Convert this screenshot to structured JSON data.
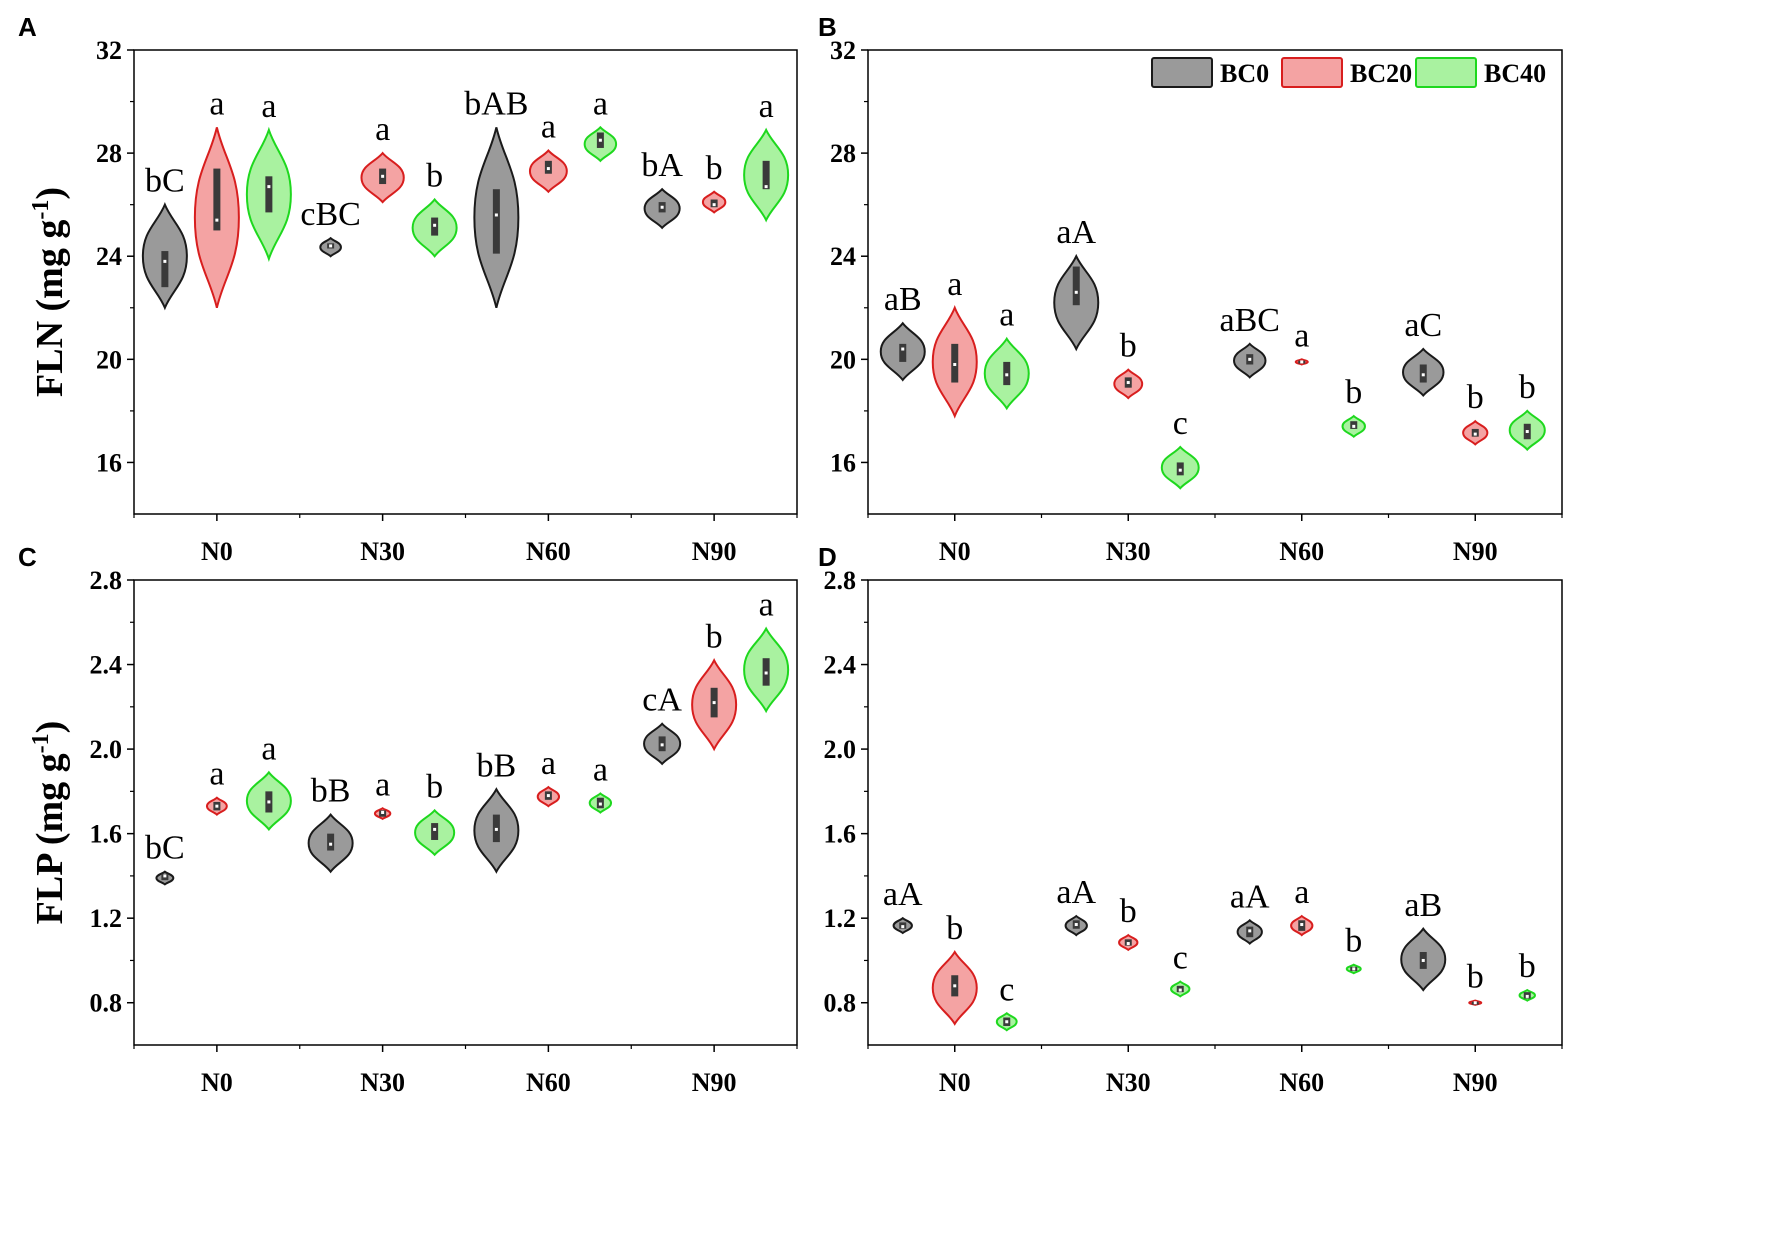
{
  "colors": {
    "BC0": {
      "fill": "#9a9a9a",
      "stroke": "#1a1a1a"
    },
    "BC20": {
      "fill": "#f4a3a3",
      "stroke": "#d81e1e"
    },
    "BC40": {
      "fill": "#a9f2a0",
      "stroke": "#1ed81e"
    },
    "box": "#3a3a3a",
    "median": "#ffffff"
  },
  "legend": [
    "BC0",
    "BC20",
    "BC40"
  ],
  "chart_data": [
    {
      "panel": "A",
      "type": "violin",
      "ylabel": "FLN (mg g",
      "ylabel_sup": "-1",
      "ylabel_close": ")",
      "ylim": [
        14,
        32
      ],
      "yticks": [
        16,
        20,
        24,
        28,
        32
      ],
      "categories": [
        "N0",
        "N30",
        "N60",
        "N90"
      ],
      "series": [
        {
          "name": "BC0",
          "groups": [
            {
              "min": 22.0,
              "max": 26.0,
              "q1": 22.8,
              "q3": 24.2,
              "median": 23.8,
              "label": "bC"
            },
            {
              "min": 24.0,
              "max": 24.7,
              "q1": 24.3,
              "q3": 24.5,
              "median": 24.4,
              "label": "cBC"
            },
            {
              "min": 22.0,
              "max": 29.0,
              "q1": 24.1,
              "q3": 26.6,
              "median": 25.6,
              "label": "bAB"
            },
            {
              "min": 25.1,
              "max": 26.6,
              "q1": 25.7,
              "q3": 26.1,
              "median": 25.9,
              "label": "bA"
            }
          ]
        },
        {
          "name": "BC20",
          "groups": [
            {
              "min": 22.0,
              "max": 29.0,
              "q1": 25.0,
              "q3": 27.4,
              "median": 25.4,
              "label": "a"
            },
            {
              "min": 26.1,
              "max": 28.0,
              "q1": 26.8,
              "q3": 27.4,
              "median": 27.1,
              "label": "a"
            },
            {
              "min": 26.5,
              "max": 28.1,
              "q1": 27.2,
              "q3": 27.7,
              "median": 27.4,
              "label": "a"
            },
            {
              "min": 25.7,
              "max": 26.5,
              "q1": 25.9,
              "q3": 26.2,
              "median": 26.0,
              "label": "b"
            }
          ]
        },
        {
          "name": "BC40",
          "groups": [
            {
              "min": 23.9,
              "max": 28.9,
              "q1": 25.7,
              "q3": 27.1,
              "median": 26.7,
              "label": "a"
            },
            {
              "min": 24.0,
              "max": 26.2,
              "q1": 24.8,
              "q3": 25.5,
              "median": 25.2,
              "label": "b"
            },
            {
              "min": 27.7,
              "max": 29.0,
              "q1": 28.2,
              "q3": 28.8,
              "median": 28.5,
              "label": "a"
            },
            {
              "min": 25.4,
              "max": 28.9,
              "q1": 26.6,
              "q3": 27.7,
              "median": 26.7,
              "label": "a"
            }
          ]
        }
      ]
    },
    {
      "panel": "B",
      "type": "violin",
      "ylabel": "",
      "ylim": [
        14,
        32
      ],
      "yticks": [
        16,
        20,
        24,
        28,
        32
      ],
      "categories": [
        "N0",
        "N30",
        "N60",
        "N90"
      ],
      "series": [
        {
          "name": "BC0",
          "groups": [
            {
              "min": 19.2,
              "max": 21.4,
              "q1": 19.9,
              "q3": 20.6,
              "median": 20.4,
              "label": "aB"
            },
            {
              "min": 20.4,
              "max": 24.0,
              "q1": 22.1,
              "q3": 23.6,
              "median": 22.6,
              "label": "aA"
            },
            {
              "min": 19.3,
              "max": 20.6,
              "q1": 19.8,
              "q3": 20.2,
              "median": 20.0,
              "label": "aBC"
            },
            {
              "min": 18.6,
              "max": 20.4,
              "q1": 19.1,
              "q3": 19.8,
              "median": 19.4,
              "label": "aC"
            }
          ]
        },
        {
          "name": "BC20",
          "groups": [
            {
              "min": 17.8,
              "max": 22.0,
              "q1": 19.1,
              "q3": 20.6,
              "median": 19.8,
              "label": "a"
            },
            {
              "min": 18.5,
              "max": 19.6,
              "q1": 18.9,
              "q3": 19.3,
              "median": 19.1,
              "label": "b"
            },
            {
              "min": 19.8,
              "max": 20.0,
              "q1": 19.85,
              "q3": 19.95,
              "median": 19.9,
              "label": "a"
            },
            {
              "min": 16.7,
              "max": 17.6,
              "q1": 17.0,
              "q3": 17.3,
              "median": 17.1,
              "label": "b"
            }
          ]
        },
        {
          "name": "BC40",
          "groups": [
            {
              "min": 18.1,
              "max": 20.8,
              "q1": 19.0,
              "q3": 19.9,
              "median": 19.4,
              "label": "a"
            },
            {
              "min": 15.0,
              "max": 16.6,
              "q1": 15.5,
              "q3": 16.0,
              "median": 15.7,
              "label": "c"
            },
            {
              "min": 17.0,
              "max": 17.8,
              "q1": 17.3,
              "q3": 17.6,
              "median": 17.4,
              "label": "b"
            },
            {
              "min": 16.5,
              "max": 18.0,
              "q1": 16.9,
              "q3": 17.5,
              "median": 17.2,
              "label": "b"
            }
          ]
        }
      ]
    },
    {
      "panel": "C",
      "type": "violin",
      "ylabel": "FLP (mg g",
      "ylabel_sup": "-1",
      "ylabel_close": ")",
      "ylim": [
        0.6,
        2.8
      ],
      "yticks": [
        0.8,
        1.2,
        1.6,
        2.0,
        2.4,
        2.8
      ],
      "categories": [
        "N0",
        "N30",
        "N60",
        "N90"
      ],
      "series": [
        {
          "name": "BC0",
          "groups": [
            {
              "min": 1.36,
              "max": 1.42,
              "q1": 1.38,
              "q3": 1.41,
              "median": 1.4,
              "label": "bC"
            },
            {
              "min": 1.42,
              "max": 1.69,
              "q1": 1.52,
              "q3": 1.6,
              "median": 1.55,
              "label": "bB"
            },
            {
              "min": 1.42,
              "max": 1.81,
              "q1": 1.56,
              "q3": 1.69,
              "median": 1.62,
              "label": "bB"
            },
            {
              "min": 1.93,
              "max": 2.12,
              "q1": 1.99,
              "q3": 2.06,
              "median": 2.02,
              "label": "cA"
            }
          ]
        },
        {
          "name": "BC20",
          "groups": [
            {
              "min": 1.69,
              "max": 1.77,
              "q1": 1.71,
              "q3": 1.75,
              "median": 1.73,
              "label": "a"
            },
            {
              "min": 1.67,
              "max": 1.72,
              "q1": 1.68,
              "q3": 1.71,
              "median": 1.7,
              "label": "a"
            },
            {
              "min": 1.73,
              "max": 1.82,
              "q1": 1.76,
              "q3": 1.8,
              "median": 1.78,
              "label": "a"
            },
            {
              "min": 2.0,
              "max": 2.42,
              "q1": 2.15,
              "q3": 2.29,
              "median": 2.22,
              "label": "b"
            }
          ]
        },
        {
          "name": "BC40",
          "groups": [
            {
              "min": 1.62,
              "max": 1.89,
              "q1": 1.7,
              "q3": 1.8,
              "median": 1.75,
              "label": "a"
            },
            {
              "min": 1.5,
              "max": 1.71,
              "q1": 1.57,
              "q3": 1.65,
              "median": 1.62,
              "label": "b"
            },
            {
              "min": 1.7,
              "max": 1.79,
              "q1": 1.72,
              "q3": 1.77,
              "median": 1.74,
              "label": "a"
            },
            {
              "min": 2.18,
              "max": 2.57,
              "q1": 2.3,
              "q3": 2.43,
              "median": 2.36,
              "label": "a"
            }
          ]
        }
      ]
    },
    {
      "panel": "D",
      "type": "violin",
      "ylabel": "",
      "ylim": [
        0.6,
        2.8
      ],
      "yticks": [
        0.8,
        1.2,
        1.6,
        2.0,
        2.4,
        2.8
      ],
      "categories": [
        "N0",
        "N30",
        "N60",
        "N90"
      ],
      "series": [
        {
          "name": "BC0",
          "groups": [
            {
              "min": 1.13,
              "max": 1.2,
              "q1": 1.15,
              "q3": 1.18,
              "median": 1.16,
              "label": "aA"
            },
            {
              "min": 1.12,
              "max": 1.21,
              "q1": 1.15,
              "q3": 1.19,
              "median": 1.17,
              "label": "aA"
            },
            {
              "min": 1.08,
              "max": 1.19,
              "q1": 1.11,
              "q3": 1.16,
              "median": 1.14,
              "label": "aA"
            },
            {
              "min": 0.86,
              "max": 1.15,
              "q1": 0.96,
              "q3": 1.04,
              "median": 1.0,
              "label": "aB"
            }
          ]
        },
        {
          "name": "BC20",
          "groups": [
            {
              "min": 0.7,
              "max": 1.04,
              "q1": 0.83,
              "q3": 0.93,
              "median": 0.88,
              "label": "b"
            },
            {
              "min": 1.05,
              "max": 1.12,
              "q1": 1.07,
              "q3": 1.1,
              "median": 1.08,
              "label": "b"
            },
            {
              "min": 1.12,
              "max": 1.21,
              "q1": 1.14,
              "q3": 1.19,
              "median": 1.17,
              "label": "a"
            },
            {
              "min": 0.79,
              "max": 0.81,
              "q1": 0.795,
              "q3": 0.805,
              "median": 0.8,
              "label": "b"
            }
          ]
        },
        {
          "name": "BC40",
          "groups": [
            {
              "min": 0.67,
              "max": 0.75,
              "q1": 0.69,
              "q3": 0.73,
              "median": 0.71,
              "label": "c"
            },
            {
              "min": 0.83,
              "max": 0.9,
              "q1": 0.85,
              "q3": 0.88,
              "median": 0.86,
              "label": "c"
            },
            {
              "min": 0.94,
              "max": 0.98,
              "q1": 0.95,
              "q3": 0.97,
              "median": 0.96,
              "label": "b"
            },
            {
              "min": 0.81,
              "max": 0.86,
              "q1": 0.82,
              "q3": 0.85,
              "median": 0.83,
              "label": "b"
            }
          ]
        }
      ]
    }
  ]
}
